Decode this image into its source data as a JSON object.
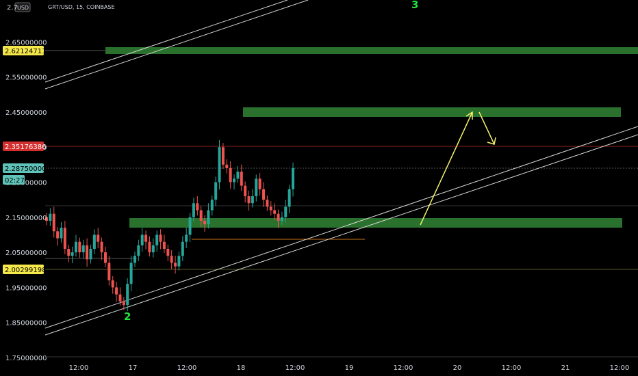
{
  "header": {
    "currency": "USD",
    "symbol": "GRT/USD, 15, COINBASE"
  },
  "colors": {
    "background": "#000000",
    "zone": "#2e7d32",
    "candle_up": "#26a69a",
    "candle_down": "#ef5350",
    "trendline": "#d8d8d8",
    "arrow": "#f5f06a",
    "wave_label": "#22e33c",
    "badge_yellow": "#f5e84a",
    "badge_red": "#d32f2f",
    "badge_teal": "#5fc3b9",
    "support_line": "#c9741a"
  },
  "chart_data": {
    "type": "candlestick",
    "y_axis": {
      "range": [
        1.75,
        2.75
      ],
      "ticks": [
        "1.75000000",
        "1.85000000",
        "1.95000000",
        "2.05000000",
        "2.15000000",
        "2.25000000",
        "2.35000000",
        "2.45000000",
        "2.55000000",
        "2.65000000"
      ],
      "top_partial_label": "2.7"
    },
    "x_axis": {
      "ticks": [
        "12:00",
        "17",
        "12:00",
        "18",
        "12:00",
        "19",
        "12:00",
        "20",
        "12:00",
        "21",
        "12:00"
      ]
    },
    "price_badges": [
      {
        "value": "2.62124711",
        "price": 2.6212,
        "style": "yellow"
      },
      {
        "value": "2.35176386",
        "price": 2.3518,
        "style": "red"
      },
      {
        "value": "2.28750000",
        "price": 2.2875,
        "style": "teal"
      },
      {
        "value": "02:27",
        "price": 2.268,
        "style": "teal"
      },
      {
        "value": "2.00299198",
        "price": 2.003,
        "style": "yellow"
      }
    ],
    "zones": [
      {
        "name": "resistance-zone-top",
        "x_from": "16 04:00",
        "x_to": "right edge",
        "y_from": 2.612,
        "y_to": 2.631
      },
      {
        "name": "target-zone",
        "x_from": "17 19:00",
        "x_to": "21 12:00",
        "y_from": 2.438,
        "y_to": 2.462
      },
      {
        "name": "support-zone",
        "x_from": "16 15:00",
        "x_to": "21 12:00",
        "y_from": 2.127,
        "y_to": 2.151
      }
    ],
    "horizontal_lines": [
      {
        "price": 2.3518,
        "color": "red"
      },
      {
        "price": 2.2875,
        "color": "gray"
      },
      {
        "price": 2.174,
        "color": "gray"
      },
      {
        "price": 2.003,
        "color": "olive"
      },
      {
        "price": 2.031,
        "color": "gray"
      },
      {
        "price": 2.077,
        "color": "orange",
        "short": true
      }
    ],
    "close_series": [
      2.14,
      2.16,
      2.11,
      2.09,
      2.12,
      2.06,
      2.04,
      2.05,
      2.08,
      2.05,
      2.07,
      2.03,
      2.06,
      2.1,
      2.08,
      2.05,
      2.02,
      1.97,
      1.95,
      1.93,
      1.91,
      1.9,
      1.96,
      2.02,
      2.04,
      2.07,
      2.1,
      2.08,
      2.05,
      2.07,
      2.1,
      2.08,
      2.06,
      2.04,
      2.02,
      2.01,
      2.04,
      2.08,
      2.1,
      2.15,
      2.19,
      2.17,
      2.14,
      2.13,
      2.17,
      2.2,
      2.25,
      2.35,
      2.3,
      2.29,
      2.25,
      2.26,
      2.28,
      2.24,
      2.21,
      2.19,
      2.21,
      2.26,
      2.23,
      2.2,
      2.18,
      2.17,
      2.16,
      2.14,
      2.15,
      2.18,
      2.23,
      2.29
    ],
    "wave_labels": [
      {
        "text": "2",
        "position": "under the 1.90 low"
      },
      {
        "text": "3",
        "position": "top, near 20"
      }
    ],
    "grid": false,
    "legend": "none"
  }
}
